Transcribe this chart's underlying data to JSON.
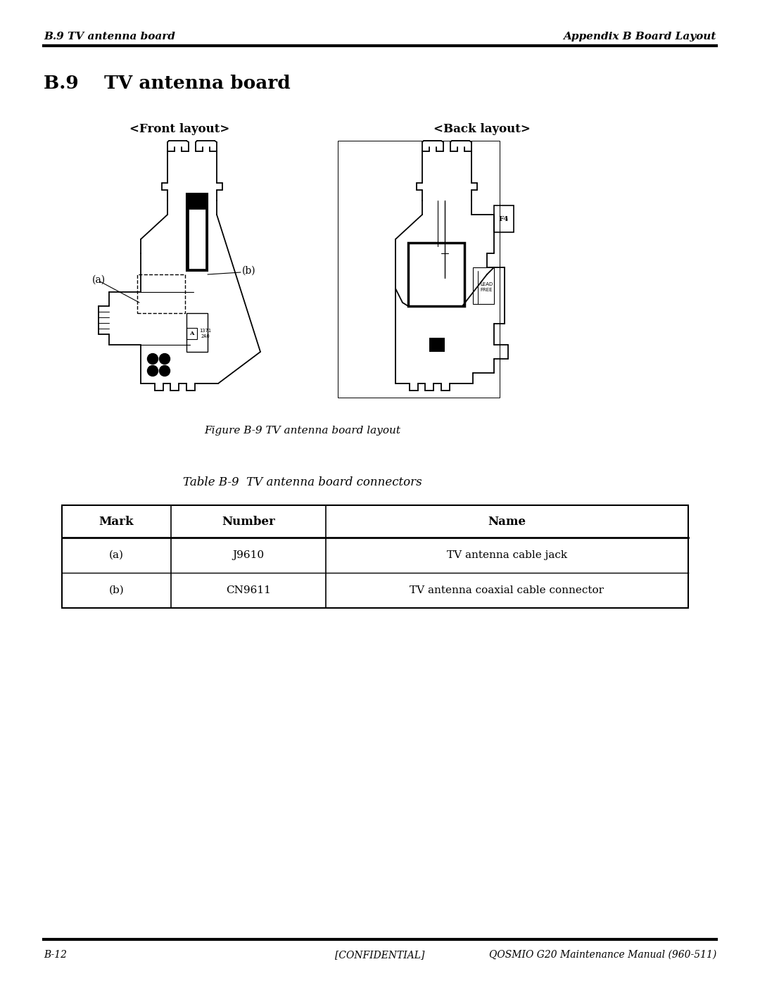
{
  "page_title_left": "B.9 TV antenna board",
  "page_title_right": "Appendix B Board Layout",
  "section_title": "B.9    TV antenna board",
  "front_layout_label": "<Front layout>",
  "back_layout_label": "<Back layout>",
  "figure_caption": "Figure B-9 TV antenna board layout",
  "table_caption": "Table B-9  TV antenna board connectors",
  "table_headers": [
    "Mark",
    "Number",
    "Name"
  ],
  "table_rows": [
    [
      "(a)",
      "J9610",
      "TV antenna cable jack"
    ],
    [
      "(b)",
      "CN9611",
      "TV antenna coaxial cable connector"
    ]
  ],
  "footer_left": "B-12",
  "footer_center": "[CONFIDENTIAL]",
  "footer_right": "QOSMIO G20 Maintenance Manual (960-511)",
  "bg_color": "#ffffff",
  "text_color": "#000000"
}
